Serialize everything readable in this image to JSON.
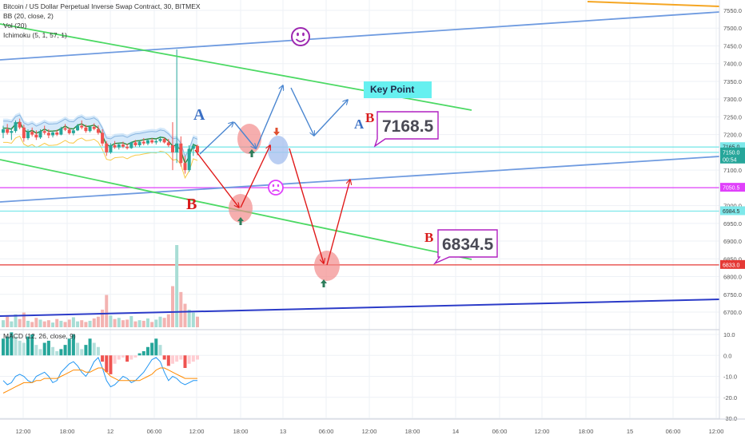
{
  "header": {
    "title": "Bitcoin / US Dollar Perpetual Inverse Swap Contract, 30, BITMEX",
    "indicators": [
      "BB (20, close, 2)",
      "Vol (20)",
      "Ichimoku (5, 1, 57, 1)"
    ],
    "macd_label": "MACD (12, 26, close, 9)"
  },
  "colors": {
    "background": "#ffffff",
    "grid": "#eef1f6",
    "up": "#26a69a",
    "down": "#ef5350",
    "trend_green": "#4cd964",
    "trend_blue": "#6f9be0",
    "trend_navy": "#2b3bc8",
    "trend_orange": "#f5a623",
    "arrow_blue": "#4a86d0",
    "arrow_red": "#e01b1b",
    "magenta_line": "#e040fb",
    "cyan_line": "#7ee8ea",
    "red_line": "#e53935",
    "macd_line": "#2196f3",
    "signal_line": "#ff8a00",
    "callout_border": "#b020c0",
    "keypoint_bg": "#66f0f0"
  },
  "chart_data": {
    "type": "candlestick",
    "title": "Bitcoin / US Dollar Perpetual Inverse Swap Contract, 30, BITMEX",
    "price_axis": {
      "ticks": [
        "7550.0",
        "7500.0",
        "7450.0",
        "7400.0",
        "7350.0",
        "7300.0",
        "7250.0",
        "7200.0",
        "7150.0",
        "7100.0",
        "7050.0",
        "7000.0",
        "6950.0",
        "6900.0",
        "6850.0",
        "6800.0",
        "6750.0",
        "6700.0"
      ],
      "range": [
        6680,
        7570
      ]
    },
    "macd_axis": {
      "ticks": [
        "10.0",
        "0.0",
        "-10.0",
        "-20.0",
        "-30.0"
      ],
      "range": [
        -31,
        12
      ]
    },
    "time_axis": {
      "labels": [
        "12:00",
        "18:00",
        "12",
        "06:00",
        "12:00",
        "18:00",
        "13",
        "06:00",
        "12:00",
        "18:00",
        "14",
        "06:00",
        "12:00",
        "18:00",
        "15",
        "06:00",
        "12:00"
      ]
    },
    "price_tags": [
      {
        "value": "7165.0",
        "price": 7165,
        "color": "#7ee8ea",
        "text_dark": true
      },
      {
        "value": "7150.0",
        "price": 7150,
        "color": "#26a69a",
        "text_dark": false
      },
      {
        "value": "00:54",
        "price": 7130,
        "color": "#26a69a",
        "text_dark": false
      },
      {
        "value": "7050.5",
        "price": 7050.5,
        "color": "#e040fb",
        "text_dark": false
      },
      {
        "value": "6984.5",
        "price": 6984.5,
        "color": "#7ee8ea",
        "text_dark": true
      },
      {
        "value": "6833.0",
        "price": 6833,
        "color": "#e53935",
        "text_dark": false
      }
    ],
    "horizontal_lines": [
      {
        "price": 7165,
        "color": "#7ee8ea"
      },
      {
        "price": 7150,
        "color": "#7ee8ea"
      },
      {
        "price": 7050.5,
        "color": "#e040fb"
      },
      {
        "price": 6984.5,
        "color": "#7ee8ea"
      },
      {
        "price": 6833,
        "color": "#e53935"
      }
    ],
    "candles": [
      [
        7205,
        7225,
        7190,
        7215
      ],
      [
        7215,
        7230,
        7200,
        7205
      ],
      [
        7205,
        7220,
        7185,
        7210
      ],
      [
        7210,
        7240,
        7205,
        7235
      ],
      [
        7235,
        7245,
        7215,
        7220
      ],
      [
        7220,
        7228,
        7180,
        7190
      ],
      [
        7190,
        7215,
        7185,
        7208
      ],
      [
        7208,
        7220,
        7195,
        7200
      ],
      [
        7200,
        7212,
        7185,
        7192
      ],
      [
        7192,
        7215,
        7188,
        7210
      ],
      [
        7210,
        7225,
        7200,
        7205
      ],
      [
        7205,
        7215,
        7190,
        7198
      ],
      [
        7198,
        7210,
        7192,
        7206
      ],
      [
        7206,
        7214,
        7196,
        7200
      ],
      [
        7200,
        7222,
        7198,
        7218
      ],
      [
        7218,
        7230,
        7210,
        7214
      ],
      [
        7214,
        7220,
        7200,
        7204
      ],
      [
        7204,
        7216,
        7198,
        7212
      ],
      [
        7212,
        7230,
        7210,
        7225
      ],
      [
        7225,
        7240,
        7215,
        7220
      ],
      [
        7220,
        7228,
        7205,
        7210
      ],
      [
        7210,
        7224,
        7206,
        7222
      ],
      [
        7222,
        7232,
        7212,
        7216
      ],
      [
        7216,
        7226,
        7200,
        7205
      ],
      [
        7205,
        7215,
        7168,
        7175
      ],
      [
        7175,
        7182,
        7140,
        7150
      ],
      [
        7150,
        7176,
        7146,
        7170
      ],
      [
        7170,
        7182,
        7160,
        7164
      ],
      [
        7164,
        7176,
        7158,
        7172
      ],
      [
        7172,
        7180,
        7162,
        7166
      ],
      [
        7166,
        7174,
        7158,
        7162
      ],
      [
        7162,
        7180,
        7160,
        7178
      ],
      [
        7178,
        7185,
        7166,
        7170
      ],
      [
        7170,
        7182,
        7165,
        7180
      ],
      [
        7180,
        7190,
        7170,
        7175
      ],
      [
        7175,
        7186,
        7170,
        7184
      ],
      [
        7184,
        7190,
        7174,
        7178
      ],
      [
        7178,
        7186,
        7172,
        7182
      ],
      [
        7182,
        7195,
        7178,
        7188
      ],
      [
        7188,
        7192,
        7175,
        7178
      ],
      [
        7178,
        7188,
        7165,
        7170
      ],
      [
        7170,
        7235,
        7100,
        7150
      ],
      [
        7150,
        7440,
        7120,
        7175
      ],
      [
        7175,
        7195,
        7110,
        7120
      ],
      [
        7120,
        7140,
        7090,
        7100
      ],
      [
        7100,
        7170,
        7095,
        7160
      ],
      [
        7160,
        7175,
        7140,
        7168
      ],
      [
        7168,
        7172,
        7142,
        7150
      ]
    ],
    "volumes": [
      12,
      18,
      10,
      22,
      14,
      25,
      11,
      9,
      16,
      13,
      10,
      12,
      8,
      14,
      11,
      9,
      13,
      17,
      10,
      12,
      9,
      11,
      15,
      18,
      30,
      55,
      20,
      14,
      16,
      12,
      13,
      19,
      10,
      12,
      11,
      15,
      9,
      13,
      18,
      16,
      22,
      70,
      140,
      60,
      40,
      30,
      25,
      18
    ],
    "macd_hist": [
      8,
      9,
      11,
      9,
      7,
      6,
      9,
      10,
      5,
      3,
      6,
      7,
      4,
      2,
      3,
      5,
      8,
      10,
      6,
      3,
      5,
      8,
      6,
      4,
      -3,
      -8,
      -9,
      -4,
      -2,
      -1,
      -3,
      -2,
      -1,
      1,
      2,
      4,
      6,
      8,
      5,
      -2,
      -5,
      -4,
      -3,
      -2,
      -6,
      -4,
      -3,
      -2
    ],
    "macd_line": [
      -12,
      -14,
      -13,
      -10,
      -9,
      -10,
      -12,
      -13,
      -10,
      -9,
      -8,
      -10,
      -13,
      -12,
      -8,
      -6,
      -4,
      -3,
      -5,
      -8,
      -10,
      -7,
      -3,
      -1,
      -6,
      -12,
      -15,
      -14,
      -12,
      -10,
      -11,
      -13,
      -12,
      -10,
      -8,
      -5,
      -2,
      -1,
      -3,
      -8,
      -12,
      -10,
      -11,
      -13,
      -14,
      -13,
      -12,
      -12
    ],
    "signal_line": [
      -18,
      -17,
      -16,
      -15,
      -14,
      -13,
      -13,
      -13,
      -12,
      -12,
      -11,
      -11,
      -11,
      -11,
      -10,
      -9,
      -8,
      -7,
      -7,
      -7,
      -8,
      -8,
      -7,
      -6,
      -6,
      -8,
      -10,
      -11,
      -12,
      -12,
      -12,
      -12,
      -12,
      -12,
      -11,
      -10,
      -9,
      -7,
      -6,
      -6,
      -7,
      -8,
      -9,
      -10,
      -11,
      -11,
      -11,
      -11
    ],
    "annotations": {
      "key_point": "Key Point",
      "callout_upper": "7168.5",
      "callout_lower": "6834.5",
      "wave_labels": [
        "A",
        "B",
        "A",
        "B",
        "B"
      ]
    }
  }
}
